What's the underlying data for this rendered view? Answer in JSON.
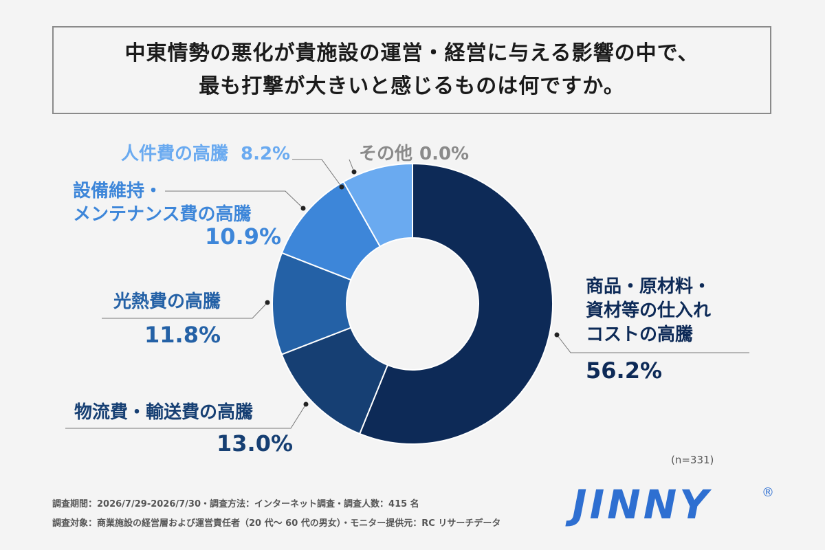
{
  "title": {
    "line1": "中東情勢の悪化が貴施設の運営・経営に与える影響の中で、",
    "line2": "最も打撃が大きいと感じるものは何ですか。"
  },
  "chart_data": {
    "type": "pie",
    "donut": true,
    "slices": [
      {
        "label": "商品・原材料・資材等の仕入れコストの高騰",
        "label_lines": [
          "商品・原材料・",
          "資材等の仕入れ",
          "コストの高騰"
        ],
        "value": 56.2,
        "value_label": "56.2%",
        "color": "#0d2a57"
      },
      {
        "label": "物流費・輸送費の高騰",
        "label_lines": [
          "物流費・輸送費の高騰"
        ],
        "value": 13.0,
        "value_label": "13.0%",
        "color": "#163f73"
      },
      {
        "label": "光熱費の高騰",
        "label_lines": [
          "光熱費の高騰"
        ],
        "value": 11.8,
        "value_label": "11.8%",
        "color": "#2461a6"
      },
      {
        "label": "設備維持・メンテナンス費の高騰",
        "label_lines": [
          "設備維持・",
          "メンテナンス費の高騰"
        ],
        "value": 10.9,
        "value_label": "10.9%",
        "color": "#3d86d9"
      },
      {
        "label": "人件費の高騰",
        "label_lines": [
          "人件費の高騰"
        ],
        "value": 8.2,
        "value_label": "8.2%",
        "color": "#6aaaf0"
      },
      {
        "label": "その他",
        "label_lines": [
          "その他"
        ],
        "value": 0.0,
        "value_label": "0.0%",
        "color": "#888888"
      }
    ]
  },
  "note": "(n=331)",
  "footer": {
    "line1": "調査期間：2026/7/29-2026/7/30・調査方法：インターネット調査・調査人数：415 名",
    "line2": "調査対象：商業施設の経営層および運営責任者（20 代～ 60 代の男女）・モニター提供元：RC リサーチデータ"
  },
  "logo": {
    "text": "JINNY",
    "mark": "®"
  }
}
